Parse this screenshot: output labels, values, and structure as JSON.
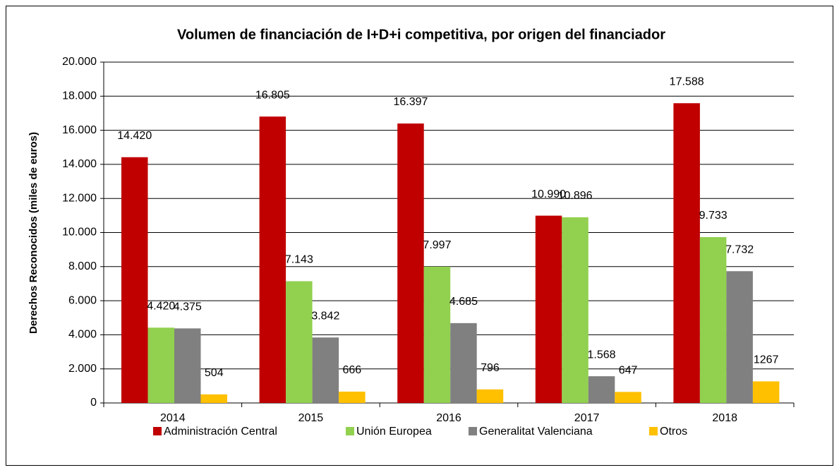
{
  "chart_data": {
    "type": "bar",
    "title": "Volumen de financiación de I+D+i competitiva, por origen del financiador",
    "y_label": "Derechos  Reconocidos  (miles de euros)",
    "categories": [
      "2014",
      "2015",
      "2016",
      "2017",
      "2018"
    ],
    "series": [
      {
        "name": "Administración Central",
        "color": "#c00000",
        "values": [
          14420,
          16805,
          16397,
          10990,
          17588
        ],
        "value_labels": [
          "14.420",
          "16.805",
          "16.397",
          "10.990",
          "17.588"
        ]
      },
      {
        "name": "Unión Europea",
        "color": "#92d050",
        "values": [
          4420,
          7143,
          7997,
          10896,
          9733
        ],
        "value_labels": [
          "4.420",
          "7.143",
          "7.997",
          "10.896",
          "9.733"
        ]
      },
      {
        "name": "Generalitat Valenciana",
        "color": "#808080",
        "values": [
          4375,
          3842,
          4685,
          1568,
          7732
        ],
        "value_labels": [
          "4.375",
          "3.842",
          "4.685",
          "1.568",
          "7.732"
        ]
      },
      {
        "name": "Otros",
        "color": "#ffc000",
        "values": [
          504,
          666,
          796,
          647,
          1267
        ]
      }
    ],
    "ylim": [
      0,
      20000
    ],
    "yticks": [
      0,
      {
        "value": 2000,
        "label": "2.000"
      },
      {
        "value": 4000,
        "label": "4.000"
      },
      {
        "value": 6000,
        "label": "6.000"
      },
      {
        "value": 8000,
        "label": "8.000"
      },
      {
        "value": 10000,
        "label": "10.000"
      },
      {
        "value": 12000,
        "label": "12.000"
      },
      {
        "value": 14000,
        "label": "14.000"
      },
      {
        "value": 16000,
        "label": "16.000"
      },
      {
        "value": 18000,
        "label": "18.000"
      },
      {
        "value": 20000,
        "label": "20.000"
      }
    ],
    "grid": true,
    "legend": "bottom"
  }
}
